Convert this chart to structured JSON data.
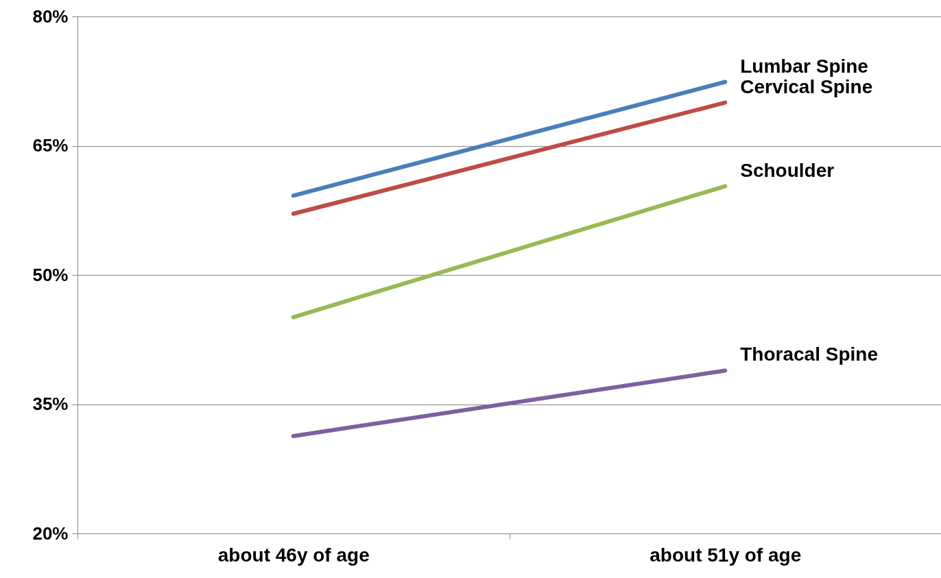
{
  "chart_data": {
    "type": "line",
    "categories": [
      "about 46y of age",
      "about 51y of age"
    ],
    "series": [
      {
        "name": "Lumbar Spine",
        "color": "#4a7ebb",
        "values": [
          59.2,
          72.4
        ]
      },
      {
        "name": "Cervical Spine",
        "color": "#be4b48",
        "values": [
          57.1,
          70.0
        ]
      },
      {
        "name": "Schoulder",
        "color": "#98b954",
        "values": [
          45.1,
          60.3
        ]
      },
      {
        "name": "Thoracal Spine",
        "color": "#7d60a0",
        "values": [
          31.3,
          38.9
        ]
      }
    ],
    "ylim": [
      20,
      80
    ],
    "yticks": [
      {
        "value": 20,
        "label": "20%"
      },
      {
        "value": 35,
        "label": "35%"
      },
      {
        "value": 50,
        "label": "50%"
      },
      {
        "value": 65,
        "label": "65%"
      },
      {
        "value": 80,
        "label": "80%"
      }
    ],
    "grid": "y",
    "legend": false
  }
}
